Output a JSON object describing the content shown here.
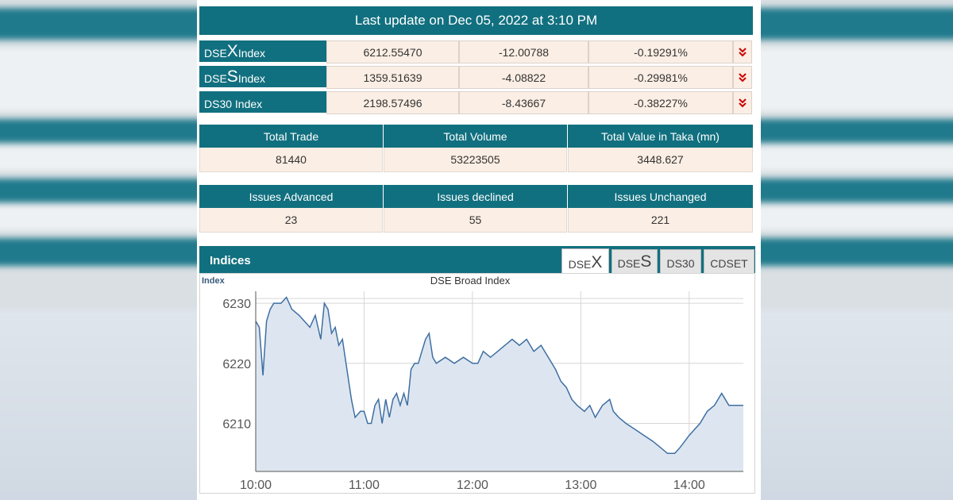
{
  "header": {
    "last_update": "Last update on Dec 05, 2022 at 3:10 PM"
  },
  "indices": [
    {
      "prefix": "DSE",
      "letter": "X",
      "suffix": " Index",
      "value": "6212.55470",
      "change": "-12.00788",
      "percent": "-0.19291%",
      "trend": "down",
      "trend_icon": "double-chevron-down-icon"
    },
    {
      "prefix": "DSE",
      "letter": "S",
      "suffix": " Index",
      "value": "1359.51639",
      "change": "-4.08822",
      "percent": "-0.29981%",
      "trend": "down",
      "trend_icon": "double-chevron-down-icon"
    },
    {
      "prefix": "DS30 Index",
      "letter": "",
      "suffix": "",
      "value": "2198.57496",
      "change": "-8.43667",
      "percent": "-0.38227%",
      "trend": "down",
      "trend_icon": "double-chevron-down-icon"
    }
  ],
  "trading": {
    "headers": [
      "Total Trade",
      "Total Volume",
      "Total Value in Taka (mn)"
    ],
    "values": [
      "81440",
      "53223505",
      "3448.627"
    ]
  },
  "issues": {
    "headers": [
      "Issues Advanced",
      "Issues declined",
      "Issues Unchanged"
    ],
    "values": [
      "23",
      "55",
      "221"
    ]
  },
  "indices_section": {
    "title": "Indices",
    "tabs": [
      {
        "prefix": "DSE",
        "letter": "X",
        "active": true
      },
      {
        "prefix": "DSE",
        "letter": "S",
        "active": false
      },
      {
        "prefix": "DS30",
        "letter": "",
        "active": false
      },
      {
        "prefix": "CDSET",
        "letter": "",
        "active": false
      }
    ]
  },
  "colors": {
    "header_teal": "#11707f",
    "cell_bg": "#fbeee4",
    "line": "#3f6fa3",
    "area": "#dde6f0",
    "down_arrow": "#cc0000"
  },
  "chart_data": {
    "type": "area",
    "title": "DSE Broad Index",
    "ylabel": "Index",
    "xlabel": "",
    "x_ticks": [
      "10:00",
      "11:00",
      "12:00",
      "13:00",
      "14:00"
    ],
    "y_ticks": [
      6210,
      6220,
      6230
    ],
    "ylim": [
      6202,
      6232
    ],
    "xlim": [
      "10:00",
      "14:30"
    ],
    "grid": true,
    "series": [
      {
        "values": [
          [
            "10:00",
            6227
          ],
          [
            "10:02",
            6226
          ],
          [
            "10:04",
            6218
          ],
          [
            "10:06",
            6227
          ],
          [
            "10:08",
            6229
          ],
          [
            "10:10",
            6230
          ],
          [
            "10:14",
            6230
          ],
          [
            "10:17",
            6231
          ],
          [
            "10:20",
            6229
          ],
          [
            "10:24",
            6228
          ],
          [
            "10:27",
            6227
          ],
          [
            "10:30",
            6226
          ],
          [
            "10:33",
            6228
          ],
          [
            "10:36",
            6224
          ],
          [
            "10:38",
            6230
          ],
          [
            "10:40",
            6229
          ],
          [
            "10:42",
            6225
          ],
          [
            "10:44",
            6226
          ],
          [
            "10:46",
            6223
          ],
          [
            "10:48",
            6224
          ],
          [
            "10:50",
            6220
          ],
          [
            "10:53",
            6214
          ],
          [
            "10:55",
            6211
          ],
          [
            "10:58",
            6212
          ],
          [
            "11:00",
            6212
          ],
          [
            "11:02",
            6210
          ],
          [
            "11:04",
            6210
          ],
          [
            "11:06",
            6213
          ],
          [
            "11:08",
            6214
          ],
          [
            "11:10",
            6210
          ],
          [
            "11:12",
            6214
          ],
          [
            "11:14",
            6211
          ],
          [
            "11:16",
            6214
          ],
          [
            "11:18",
            6215
          ],
          [
            "11:20",
            6213
          ],
          [
            "11:22",
            6215
          ],
          [
            "11:24",
            6213
          ],
          [
            "11:26",
            6219
          ],
          [
            "11:28",
            6220
          ],
          [
            "11:30",
            6220
          ],
          [
            "11:32",
            6222
          ],
          [
            "11:34",
            6224
          ],
          [
            "11:36",
            6225
          ],
          [
            "11:38",
            6221
          ],
          [
            "11:40",
            6220
          ],
          [
            "11:45",
            6221
          ],
          [
            "11:50",
            6220
          ],
          [
            "11:55",
            6221
          ],
          [
            "12:00",
            6220
          ],
          [
            "12:03",
            6220
          ],
          [
            "12:06",
            6222
          ],
          [
            "12:10",
            6221
          ],
          [
            "12:14",
            6222
          ],
          [
            "12:18",
            6223
          ],
          [
            "12:22",
            6224
          ],
          [
            "12:26",
            6223
          ],
          [
            "12:30",
            6224
          ],
          [
            "12:34",
            6222
          ],
          [
            "12:38",
            6223
          ],
          [
            "12:42",
            6221
          ],
          [
            "12:46",
            6219
          ],
          [
            "12:49",
            6217
          ],
          [
            "12:52",
            6216
          ],
          [
            "12:55",
            6214
          ],
          [
            "12:58",
            6213
          ],
          [
            "13:02",
            6212
          ],
          [
            "13:05",
            6213
          ],
          [
            "13:08",
            6211
          ],
          [
            "13:12",
            6213
          ],
          [
            "13:16",
            6214
          ],
          [
            "13:18",
            6212
          ],
          [
            "13:21",
            6211
          ],
          [
            "13:25",
            6210
          ],
          [
            "13:30",
            6209
          ],
          [
            "13:35",
            6208
          ],
          [
            "13:40",
            6207
          ],
          [
            "13:44",
            6206
          ],
          [
            "13:48",
            6205
          ],
          [
            "13:52",
            6205
          ],
          [
            "13:55",
            6206
          ],
          [
            "14:00",
            6208
          ],
          [
            "14:03",
            6209
          ],
          [
            "14:06",
            6210
          ],
          [
            "14:10",
            6212
          ],
          [
            "14:14",
            6213
          ],
          [
            "14:18",
            6215
          ],
          [
            "14:20",
            6214
          ],
          [
            "14:22",
            6213
          ],
          [
            "14:26",
            6213
          ],
          [
            "14:30",
            6213
          ]
        ]
      }
    ]
  }
}
